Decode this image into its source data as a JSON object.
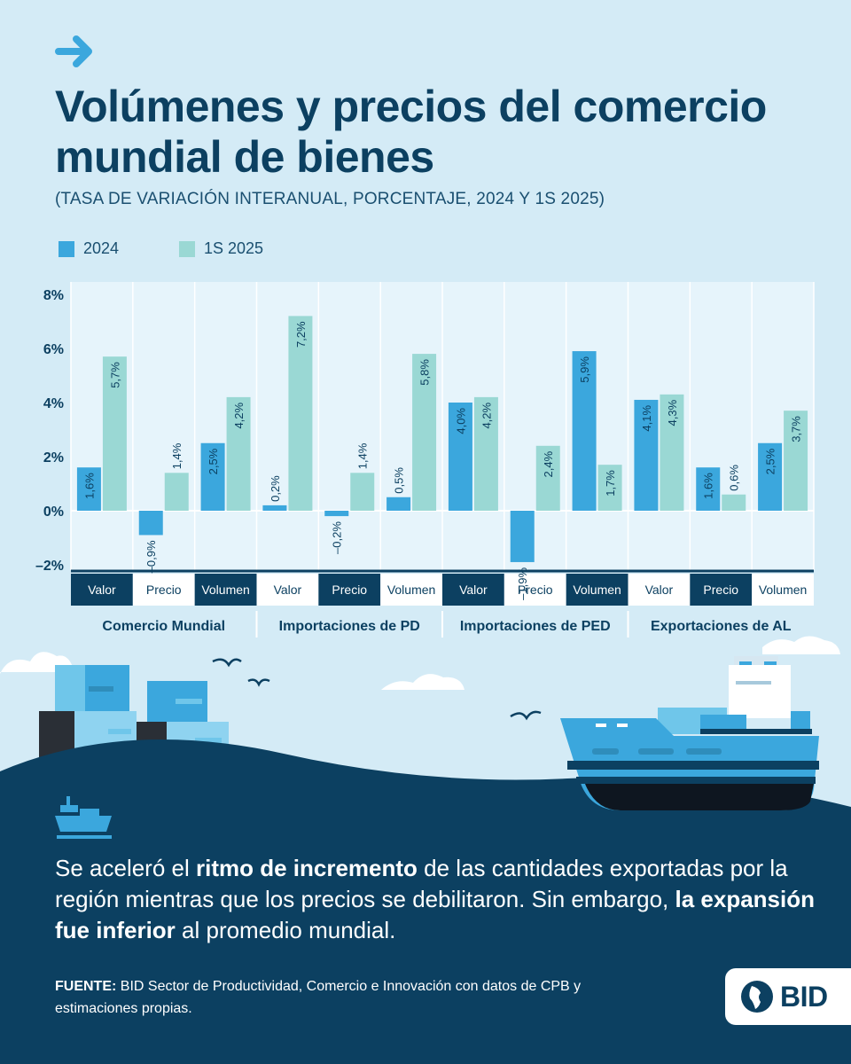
{
  "header": {
    "title": "Volúmenes y precios del comercio mundial de bienes",
    "subtitle": "(TASA DE VARIACIÓN INTERANUAL, PORCENTAJE, 2024 Y 1S 2025)"
  },
  "legend": [
    {
      "label": "2024",
      "color": "#3ba7dd"
    },
    {
      "label": "1S 2025",
      "color": "#9ad8d4"
    }
  ],
  "chart_data": {
    "type": "bar",
    "y_ticks": [
      "8%",
      "6%",
      "4%",
      "2%",
      "0%",
      "–2%"
    ],
    "ylim": [
      -2,
      8
    ],
    "grid": true,
    "legend_position": "top-left",
    "groups": [
      {
        "name": "Comercio Mundial",
        "categories": [
          {
            "label": "Valor",
            "v2024": 1.6,
            "l2024": "1,6%",
            "v2025": 5.7,
            "l2025": "5,7%"
          },
          {
            "label": "Precio",
            "v2024": -0.9,
            "l2024": "–0,9%",
            "v2025": 1.4,
            "l2025": "1,4%"
          },
          {
            "label": "Volumen",
            "v2024": 2.5,
            "l2024": "2,5%",
            "v2025": 4.2,
            "l2025": "4,2%"
          }
        ]
      },
      {
        "name": "Importaciones de PD",
        "categories": [
          {
            "label": "Valor",
            "v2024": 0.2,
            "l2024": "0,2%",
            "v2025": 7.2,
            "l2025": "7,2%"
          },
          {
            "label": "Precio",
            "v2024": -0.2,
            "l2024": "–0,2%",
            "v2025": 1.4,
            "l2025": "1,4%"
          },
          {
            "label": "Volumen",
            "v2024": 0.5,
            "l2024": "0,5%",
            "v2025": 5.8,
            "l2025": "5,8%"
          }
        ]
      },
      {
        "name": "Importaciones de PED",
        "categories": [
          {
            "label": "Valor",
            "v2024": 4.0,
            "l2024": "4,0%",
            "v2025": 4.2,
            "l2025": "4,2%"
          },
          {
            "label": "Precio",
            "v2024": -1.9,
            "l2024": "–1,9%",
            "v2025": 2.4,
            "l2025": "2,4%"
          },
          {
            "label": "Volumen",
            "v2024": 5.9,
            "l2024": "5,9%",
            "v2025": 1.7,
            "l2025": "1,7%"
          }
        ]
      },
      {
        "name": "Exportaciones de AL",
        "categories": [
          {
            "label": "Valor",
            "v2024": 4.1,
            "l2024": "4,1%",
            "v2025": 4.3,
            "l2025": "4,3%"
          },
          {
            "label": "Precio",
            "v2024": 1.6,
            "l2024": "1,6%",
            "v2025": 0.6,
            "l2025": "0,6%"
          },
          {
            "label": "Volumen",
            "v2024": 2.5,
            "l2024": "2,5%",
            "v2025": 3.7,
            "l2025": "3,7%"
          }
        ]
      }
    ]
  },
  "message": {
    "p1": "Se aceleró el ",
    "b1": "ritmo de incremento",
    "p2": " de las cantidades exportadas por la región mientras que los precios se debilitaron. Sin embargo, ",
    "b2": "la expansión fue inferior",
    "p3": " al promedio mundial."
  },
  "source": {
    "label": "FUENTE:",
    "text": " BID Sector de Productividad, Comercio e Innovación con datos de CPB y estimaciones propias."
  },
  "logo": {
    "text": "BID"
  },
  "colors": {
    "dark": "#0c4061",
    "c2024": "#3ba7dd",
    "c2025": "#9ad8d4",
    "background": "#d4ebf6"
  },
  "icons": [
    "arrow-right-icon",
    "ship-icon",
    "globe-icon"
  ]
}
